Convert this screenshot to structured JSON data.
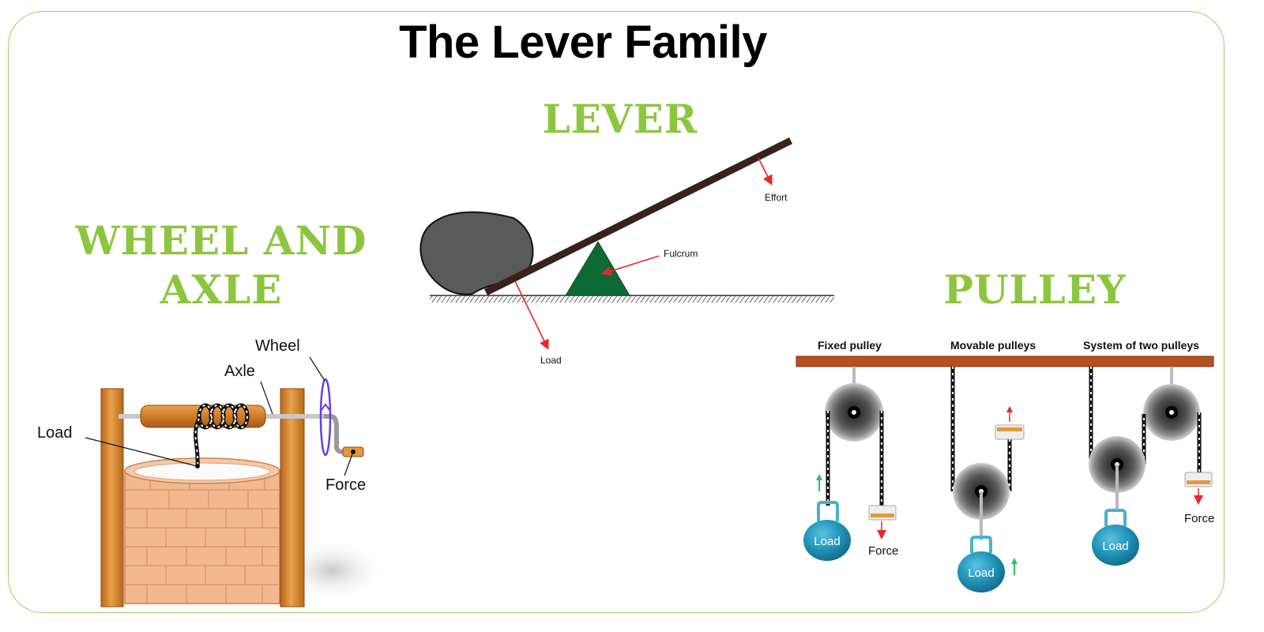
{
  "title": "The Lever Family",
  "lever": {
    "title": "LEVER",
    "effort_label": "Effort",
    "fulcrum_label": "Fulcrum",
    "load_label": "Load"
  },
  "wheel": {
    "title_line1": "WHEEL AND",
    "title_line2": "AXLE",
    "wheel_label": "Wheel",
    "axle_label": "Axle",
    "load_label": "Load",
    "force_label": "Force"
  },
  "pulley": {
    "title": "PULLEY",
    "fixed_label": "Fixed pulley",
    "movable_label": "Movable pulleys",
    "system_label": "System of two pulleys",
    "load_label": "Load",
    "force_label": "Force"
  },
  "colors": {
    "accent_green": "#8cc63f",
    "arrow_red": "#e8262b",
    "fulcrum_green": "#0e6a35",
    "load_blue": "#1f93b8",
    "wood": "#d7842b",
    "beam_brown": "#3a2218"
  }
}
